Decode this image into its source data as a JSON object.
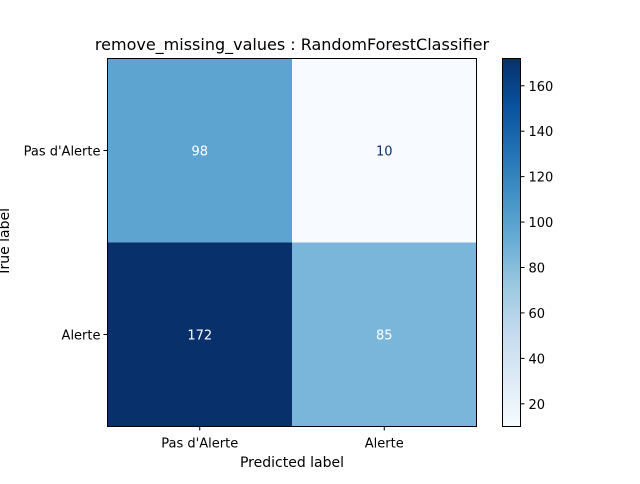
{
  "chart_data": {
    "type": "heatmap",
    "title": "remove_missing_values : RandomForestClassifier",
    "xlabel": "Predicted label",
    "ylabel": "True label",
    "x_categories": [
      "Pas d'Alerte",
      "Alerte"
    ],
    "y_categories": [
      "Pas d'Alerte",
      "Alerte"
    ],
    "values": [
      [
        98,
        10
      ],
      [
        172,
        85
      ]
    ],
    "colormap": "Blues",
    "colorbar": {
      "min": 10,
      "max": 172,
      "ticks": [
        20,
        40,
        60,
        80,
        100,
        120,
        140,
        160
      ]
    }
  }
}
